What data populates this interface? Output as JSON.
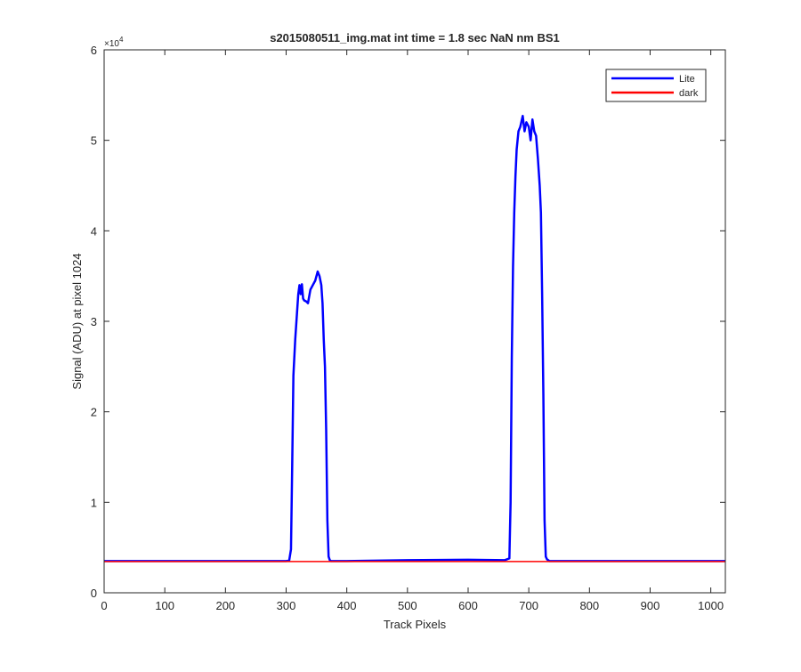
{
  "chart_data": {
    "type": "line",
    "title": "s2015080511_img.mat int time = 1.8 sec  NaN nm BS1",
    "xlabel": "Track Pixels",
    "ylabel": "Signal (ADU) at pixel 1024",
    "y_exponent_base": "×10",
    "y_exponent_power": "4",
    "xlim": [
      0,
      1024
    ],
    "ylim": [
      0,
      60000
    ],
    "y_scale_factor": 10000,
    "xticks": [
      0,
      100,
      200,
      300,
      400,
      500,
      600,
      700,
      800,
      900,
      1000
    ],
    "yticks": [
      0,
      10000,
      20000,
      30000,
      40000,
      50000,
      60000
    ],
    "xtick_labels": [
      "0",
      "100",
      "200",
      "300",
      "400",
      "500",
      "600",
      "700",
      "800",
      "900",
      "1000"
    ],
    "ytick_labels": [
      "0",
      "1",
      "2",
      "3",
      "4",
      "5",
      "6"
    ],
    "grid": false,
    "legend_position": "top-right",
    "series": [
      {
        "name": "Lite",
        "color": "#0000ff",
        "x": [
          0,
          100,
          200,
          300,
          305,
          308,
          310,
          312,
          315,
          318,
          320,
          322,
          324,
          326,
          328,
          330,
          333,
          336,
          340,
          344,
          348,
          352,
          355,
          358,
          360,
          362,
          364,
          366,
          368,
          370,
          372,
          374,
          378,
          400,
          500,
          600,
          660,
          668,
          670,
          672,
          674,
          676,
          678,
          680,
          683,
          686,
          690,
          693,
          696,
          700,
          703,
          706,
          709,
          712,
          715,
          718,
          720,
          722,
          724,
          726,
          728,
          730,
          732,
          734,
          738,
          800,
          900,
          1024
        ],
        "y": [
          3500,
          3500,
          3500,
          3500,
          3550,
          4800,
          14000,
          24000,
          28000,
          31000,
          33000,
          34000,
          33000,
          34100,
          32500,
          32300,
          32200,
          32000,
          33500,
          34000,
          34500,
          35500,
          35000,
          34000,
          32000,
          28000,
          25000,
          18000,
          8000,
          4000,
          3600,
          3500,
          3500,
          3500,
          3600,
          3650,
          3600,
          3800,
          10000,
          26000,
          36000,
          42000,
          46000,
          49000,
          51000,
          51500,
          52700,
          51000,
          52000,
          51500,
          50000,
          52300,
          51000,
          50500,
          48000,
          45000,
          42000,
          33000,
          22000,
          8000,
          4000,
          3700,
          3600,
          3500,
          3500,
          3500,
          3500,
          3500
        ]
      },
      {
        "name": "dark",
        "color": "#ff0000",
        "x": [
          0,
          100,
          200,
          300,
          400,
          500,
          600,
          700,
          800,
          900,
          1024
        ],
        "y": [
          3450,
          3450,
          3450,
          3450,
          3450,
          3450,
          3450,
          3450,
          3450,
          3450,
          3450
        ]
      }
    ]
  }
}
